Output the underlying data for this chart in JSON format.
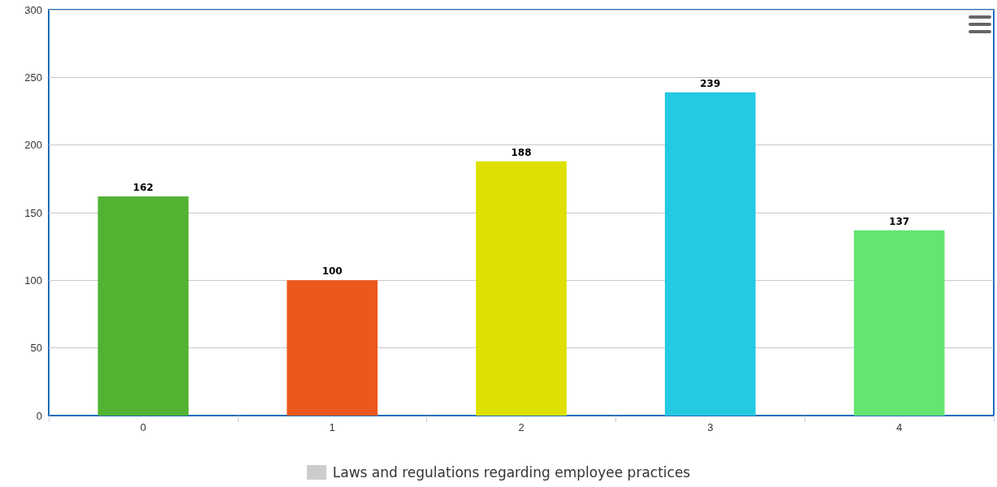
{
  "chart_data": {
    "type": "bar",
    "categories": [
      "0",
      "1",
      "2",
      "3",
      "4"
    ],
    "series": [
      {
        "name": "Laws and regulations regarding employee practices",
        "color": "#cccccc",
        "colors": [
          "#52b232",
          "#ec581b",
          "#dde000",
          "#24c9e2",
          "#64e572"
        ],
        "values": [
          162,
          100,
          188,
          239,
          137
        ]
      }
    ],
    "ylim": [
      0,
      300
    ],
    "yticks": [
      0,
      50,
      100,
      150,
      200,
      250,
      300
    ],
    "grid": "y",
    "data_labels": true,
    "legend": "bottom"
  }
}
